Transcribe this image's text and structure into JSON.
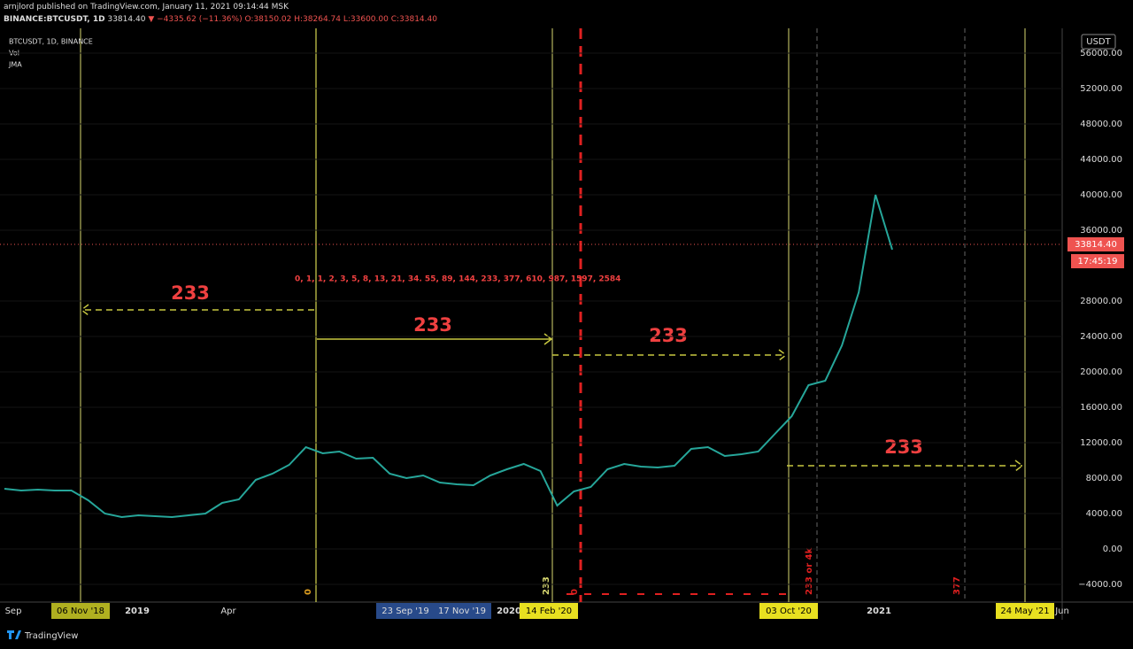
{
  "header": {
    "line1": "arnjlord published on TradingView.com, January 11, 2021 09:14:44 MSK",
    "symbol": "BINANCE:BTCUSDT, 1D",
    "last": "33814.40",
    "change": "▼ −4335.62 (−11.36%)",
    "ohlc": "O:38150.02 H:38264.74 L:33600.00 C:33814.40"
  },
  "legend": [
    "BTCUSDT, 1D, BINANCE",
    "Vol",
    "JMA"
  ],
  "currency": "USDT",
  "price_label": "33814.40",
  "countdown": "17:45:19",
  "fib_text": "0, 1, 1, 2, 3, 5, 8, 13, 21, 34. 55, 89, 144, 233, 377, 610, 987, 1597, 2584",
  "annotations": [
    "233",
    "233",
    "233",
    "233"
  ],
  "vertical_notes": [
    "0",
    "233",
    "0",
    "233 or 4k",
    "377"
  ],
  "y_axis": {
    "ticks": [
      {
        "value": 56000,
        "label": "56000.00"
      },
      {
        "value": 52000,
        "label": "52000.00"
      },
      {
        "value": 48000,
        "label": "48000.00"
      },
      {
        "value": 44000,
        "label": "44000.00"
      },
      {
        "value": 40000,
        "label": "40000.00"
      },
      {
        "value": 36000,
        "label": "36000.00"
      },
      {
        "value": 28000,
        "label": "28000.00"
      },
      {
        "value": 24000,
        "label": "24000.00"
      },
      {
        "value": 20000,
        "label": "20000.00"
      },
      {
        "value": 16000,
        "label": "16000.00"
      },
      {
        "value": 12000,
        "label": "12000.00"
      },
      {
        "value": 8000,
        "label": "8000.00"
      },
      {
        "value": 4000,
        "label": "4000.00"
      },
      {
        "value": 0,
        "label": "0.00"
      },
      {
        "value": -4000,
        "label": "−4000.00"
      }
    ]
  },
  "x_axis": {
    "labels": [
      "Sep",
      "06 Nov '18",
      "2019",
      "Apr",
      "23 Sep '19",
      "17 Nov '19",
      "2020",
      "14 Feb '20",
      "03 Oct '20",
      "2021",
      "24 May '21",
      "Jun"
    ]
  },
  "price": {
    "color": "#26a69a",
    "values": [
      6800,
      6600,
      6700,
      6600,
      6600,
      5500,
      4000,
      3600,
      3800,
      3700,
      3600,
      3800,
      4000,
      5200,
      5600,
      7800,
      8500,
      9500,
      11500,
      10800,
      11000,
      10200,
      10300,
      8500,
      8000,
      8300,
      7500,
      7300,
      7200,
      8300,
      9000,
      9600,
      8800,
      4900,
      6500,
      7000,
      9000,
      9600,
      9300,
      9200,
      9400,
      11300,
      11500,
      10500,
      10700,
      11000,
      13000,
      15000,
      18500,
      19000,
      23000,
      29000,
      40000,
      33814
    ]
  },
  "footer": "TradingView"
}
